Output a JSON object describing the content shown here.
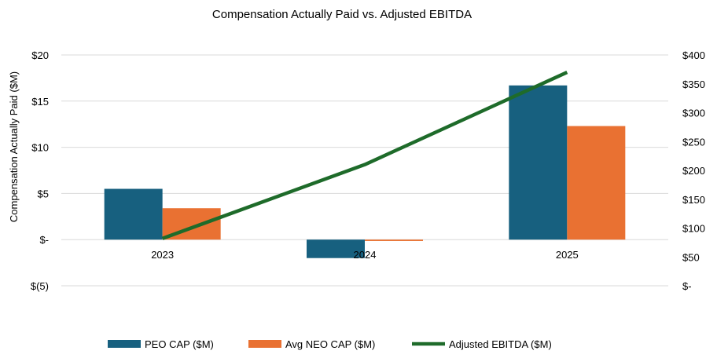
{
  "chart_data": {
    "type": "bar",
    "title": "Compensation Actually Paid vs. Adjusted EBITDA",
    "ylabel": "Compensation Actually Paid ($M)",
    "categories": [
      "2023",
      "2024",
      "2025"
    ],
    "ylim": [
      -5,
      20
    ],
    "y_ticks": [
      {
        "value": 20,
        "label": "$20"
      },
      {
        "value": 15,
        "label": "$15"
      },
      {
        "value": 10,
        "label": "$10"
      },
      {
        "value": 5,
        "label": "$5"
      },
      {
        "value": 0,
        "label": "$-"
      },
      {
        "value": -5,
        "label": "$(5)"
      }
    ],
    "y2lim": [
      0,
      400
    ],
    "y2_ticks": [
      {
        "value": 400,
        "label": "$400"
      },
      {
        "value": 350,
        "label": "$350"
      },
      {
        "value": 300,
        "label": "$300"
      },
      {
        "value": 250,
        "label": "$250"
      },
      {
        "value": 200,
        "label": "$200"
      },
      {
        "value": 150,
        "label": "$150"
      },
      {
        "value": 100,
        "label": "$100"
      },
      {
        "value": 50,
        "label": "$50"
      },
      {
        "value": 0,
        "label": "$-"
      }
    ],
    "grid": true,
    "legend_position": "bottom",
    "series": [
      {
        "name": "PEO CAP ($M)",
        "kind": "bar",
        "axis": "left",
        "color": "#17607f",
        "values": [
          5.5,
          -2.0,
          16.7
        ]
      },
      {
        "name": "Avg NEO CAP ($M)",
        "kind": "bar",
        "axis": "left",
        "color": "#e97132",
        "values": [
          3.4,
          -0.15,
          12.3
        ]
      },
      {
        "name": "Adjusted EBITDA ($M)",
        "kind": "line",
        "axis": "right",
        "color": "#1e6b2a",
        "values": [
          82,
          210,
          370
        ]
      }
    ]
  }
}
